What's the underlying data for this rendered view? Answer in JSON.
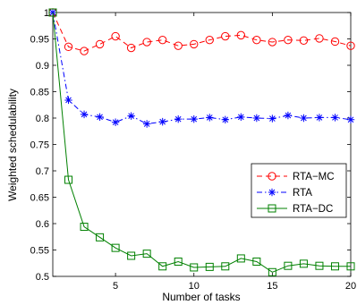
{
  "chart_data": {
    "type": "line",
    "xlabel": "Number of tasks",
    "ylabel": "Weighted schedulability",
    "xlim": [
      1,
      20
    ],
    "ylim": [
      0.5,
      1.0
    ],
    "xticks": [
      5,
      10,
      15,
      20
    ],
    "yticks": [
      0.5,
      0.55,
      0.6,
      0.65,
      0.7,
      0.75,
      0.8,
      0.85,
      0.9,
      0.95,
      1
    ],
    "ytick_labels": [
      "0.5",
      "0.55",
      "0.6",
      "0.65",
      "0.7",
      "0.75",
      "0.8",
      "0.85",
      "0.9",
      "0.95",
      "1"
    ],
    "xtick_labels": [
      "5",
      "10",
      "15",
      "20"
    ],
    "grid": false,
    "legend_position": "lower-right",
    "x": [
      1,
      2,
      3,
      4,
      5,
      6,
      7,
      8,
      9,
      10,
      11,
      12,
      13,
      14,
      15,
      16,
      17,
      18,
      19,
      20
    ],
    "series": [
      {
        "name": "RTA−MC",
        "color": "#ff0000",
        "line_style": "dashed",
        "marker": "circle",
        "values": [
          1.0,
          0.935,
          0.927,
          0.94,
          0.955,
          0.933,
          0.944,
          0.948,
          0.937,
          0.94,
          0.948,
          0.955,
          0.957,
          0.948,
          0.944,
          0.948,
          0.947,
          0.951,
          0.945,
          0.937
        ]
      },
      {
        "name": "RTA",
        "color": "#0000ff",
        "line_style": "dashdot",
        "marker": "asterisk",
        "values": [
          1.0,
          0.834,
          0.807,
          0.802,
          0.792,
          0.804,
          0.789,
          0.793,
          0.798,
          0.798,
          0.801,
          0.797,
          0.802,
          0.8,
          0.799,
          0.805,
          0.8,
          0.801,
          0.801,
          0.797
        ]
      },
      {
        "name": "RTA−DC",
        "color": "#008000",
        "line_style": "solid",
        "marker": "square",
        "values": [
          1.0,
          0.683,
          0.594,
          0.574,
          0.554,
          0.539,
          0.543,
          0.519,
          0.528,
          0.517,
          0.518,
          0.519,
          0.534,
          0.528,
          0.508,
          0.52,
          0.524,
          0.52,
          0.519,
          0.519
        ]
      }
    ]
  }
}
